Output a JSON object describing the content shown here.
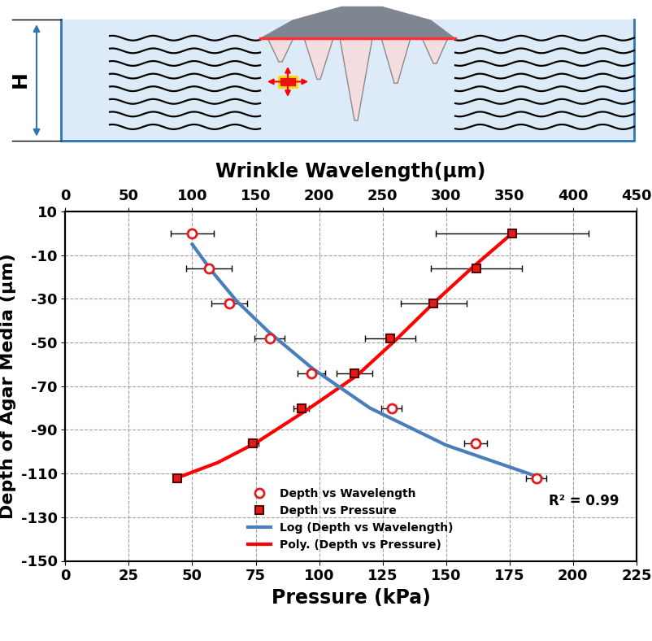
{
  "chart_data": {
    "type": "scatter",
    "xlabel": "Pressure (kPa)",
    "x2label": "Wrinkle Wavelength(µm)",
    "ylabel": "Depth of Agar Media (µm)",
    "annotation": "R² = 0.99",
    "xlim": [
      0,
      225
    ],
    "xticks": [
      0,
      25,
      50,
      75,
      100,
      125,
      150,
      175,
      200,
      225
    ],
    "x2lim": [
      0,
      450
    ],
    "x2ticks": [
      0,
      50,
      100,
      150,
      200,
      250,
      300,
      350,
      400,
      450
    ],
    "ylim": [
      -150,
      10
    ],
    "yticks": [
      -150,
      -130,
      -110,
      -90,
      -70,
      -50,
      -30,
      -10,
      10
    ],
    "grid": true,
    "legend": "lower center",
    "series": [
      {
        "name": "Depth vs Wavelength",
        "type": "scatter",
        "axis": "x2",
        "color": "#e31a1c",
        "marker": "o",
        "x": [
          100,
          113,
          129,
          161,
          194,
          257,
          323,
          371
        ],
        "values": [
          0,
          -16,
          -32,
          -48,
          -64,
          -80,
          -96,
          -112
        ],
        "x_error": [
          17,
          18,
          14,
          12,
          11,
          8,
          9,
          8
        ]
      },
      {
        "name": "Depth vs Pressure",
        "type": "scatter",
        "color": "#e31a1c",
        "marker": "s",
        "x": [
          176,
          162,
          145,
          128,
          114,
          93,
          74,
          44
        ],
        "values": [
          0,
          -16,
          -32,
          -48,
          -64,
          -80,
          -96,
          -112
        ],
        "x_error": [
          30,
          18,
          13,
          10,
          7,
          3,
          2,
          1
        ]
      },
      {
        "name": "Log (Depth vs Wavelength)",
        "type": "line",
        "axis": "x2",
        "color": "#4a7ebb",
        "line_style": "solid",
        "x": [
          100,
          115,
          135,
          160,
          195,
          240,
          300,
          375
        ],
        "values": [
          -5,
          -17,
          -31,
          -45,
          -62,
          -80,
          -97,
          -112
        ]
      },
      {
        "name": "Poly. (Depth vs Pressure)",
        "type": "line",
        "color": "#ff0000",
        "line_style": "solid",
        "x": [
          44,
          60,
          75,
          95,
          115,
          130,
          145,
          160,
          176
        ],
        "values": [
          -112,
          -105,
          -96,
          -81,
          -65,
          -49,
          -32,
          -16,
          0
        ]
      }
    ]
  },
  "diagram": {
    "dimension_label": "H"
  }
}
